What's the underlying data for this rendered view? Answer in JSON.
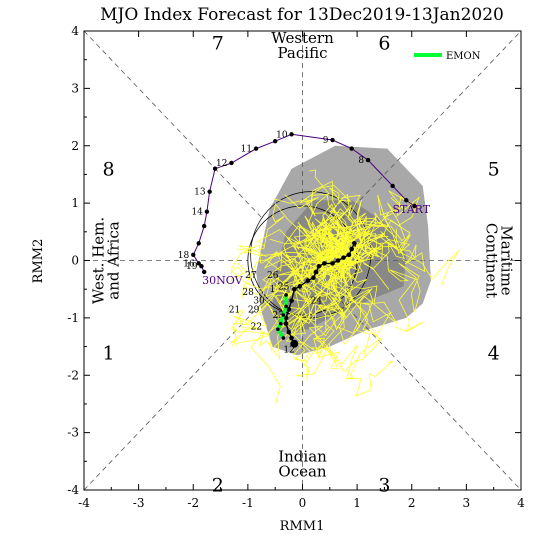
{
  "chart_data": {
    "type": "scatter",
    "title": "MJO Index Forecast for 13Dec2019-13Jan2020",
    "xlabel": "RMM1",
    "ylabel": "RMM2",
    "xlim": [
      -4,
      4
    ],
    "ylim": [
      -4,
      4
    ],
    "xticks": [
      "-4",
      "-3",
      "-2",
      "-1",
      "0",
      "1",
      "2",
      "3",
      "4"
    ],
    "yticks": [
      "-4",
      "-3",
      "-2",
      "-1",
      "0",
      "1",
      "2",
      "3",
      "4"
    ],
    "phases": [
      {
        "label": "1",
        "x": -3.55,
        "y": -1.6
      },
      {
        "label": "2",
        "x": -1.55,
        "y": -3.9
      },
      {
        "label": "3",
        "x": 1.5,
        "y": -3.9
      },
      {
        "label": "4",
        "x": 3.5,
        "y": -1.6
      },
      {
        "label": "5",
        "x": 3.5,
        "y": 1.6
      },
      {
        "label": "6",
        "x": 1.5,
        "y": 3.8
      },
      {
        "label": "7",
        "x": -1.55,
        "y": 3.8
      },
      {
        "label": "8",
        "x": -3.55,
        "y": 1.6
      }
    ],
    "regions": [
      {
        "lines": [
          "Western",
          "Pacific"
        ],
        "x": 0,
        "y": 3.75,
        "rotate": 0
      },
      {
        "lines": [
          "Indian",
          "Ocean"
        ],
        "x": 0,
        "y": -3.55,
        "rotate": 0
      },
      {
        "lines": [
          "West. Hem.",
          "and Africa"
        ],
        "x": -3.6,
        "y": 0,
        "rotate": -90
      },
      {
        "lines": [
          "Maritime",
          "Continent"
        ],
        "x": 3.6,
        "y": 0,
        "rotate": 90
      }
    ],
    "legend": {
      "label": "EMON",
      "color": "#00ff33",
      "position": "top-right"
    },
    "observed": {
      "color": "#4b0082",
      "start_label": "START",
      "end_label": "30NOV",
      "points": [
        [
          2.05,
          0.95
        ],
        [
          1.9,
          1.05
        ],
        [
          1.65,
          1.3
        ],
        [
          1.2,
          1.75
        ],
        [
          0.9,
          1.95
        ],
        [
          0.55,
          2.1
        ],
        [
          -0.2,
          2.2
        ],
        [
          -0.5,
          2.08
        ],
        [
          -0.85,
          1.95
        ],
        [
          -1.3,
          1.7
        ],
        [
          -1.6,
          1.6
        ],
        [
          -1.7,
          1.2
        ],
        [
          -1.75,
          0.85
        ],
        [
          -1.8,
          0.6
        ],
        [
          -1.9,
          0.3
        ],
        [
          -2.0,
          0.1
        ],
        [
          -1.9,
          -0.05
        ],
        [
          -1.85,
          -0.1
        ],
        [
          -1.8,
          -0.2
        ]
      ],
      "labels": [
        {
          "text": "8",
          "i": 3
        },
        {
          "text": "9",
          "i": 5
        },
        {
          "text": "10",
          "i": 6
        },
        {
          "text": "11",
          "i": 8
        },
        {
          "text": "12",
          "i": 9
        },
        {
          "text": "13",
          "i": 11
        },
        {
          "text": "14",
          "i": 12
        },
        {
          "text": "18",
          "i": 15
        },
        {
          "text": "16",
          "i": 16
        },
        {
          "text": "19",
          "i": 17
        }
      ]
    },
    "forecast_mean": {
      "color": "#000000",
      "points": [
        [
          0.95,
          0.3
        ],
        [
          0.9,
          0.2
        ],
        [
          0.85,
          0.1
        ],
        [
          0.75,
          0.05
        ],
        [
          0.65,
          0.0
        ],
        [
          0.55,
          -0.05
        ],
        [
          0.4,
          -0.05
        ],
        [
          0.3,
          -0.1
        ],
        [
          0.25,
          -0.2
        ],
        [
          0.2,
          -0.3
        ],
        [
          0.1,
          -0.35
        ],
        [
          -0.05,
          -0.45
        ],
        [
          -0.15,
          -0.5
        ],
        [
          -0.2,
          -0.7
        ],
        [
          -0.25,
          -0.85
        ],
        [
          -0.3,
          -1.0
        ],
        [
          -0.3,
          -1.1
        ],
        [
          -0.25,
          -1.25
        ],
        [
          -0.2,
          -1.35
        ],
        [
          -0.15,
          -1.45
        ]
      ],
      "labels": [
        {
          "text": "25",
          "x": -0.45,
          "y": -0.45
        },
        {
          "text": "24",
          "x": 0.15,
          "y": -0.7
        },
        {
          "text": "23",
          "x": -0.55,
          "y": -0.95
        },
        {
          "text": "12",
          "x": -0.35,
          "y": -1.55
        }
      ]
    },
    "forecast_labels": [
      {
        "text": "27",
        "x": -1.05,
        "y": -0.25
      },
      {
        "text": "26",
        "x": -0.65,
        "y": -0.25
      },
      {
        "text": "28",
        "x": -1.1,
        "y": -0.55
      },
      {
        "text": "30",
        "x": -0.9,
        "y": -0.7
      },
      {
        "text": "29",
        "x": -1.0,
        "y": -0.85
      },
      {
        "text": "21",
        "x": -1.35,
        "y": -0.85
      },
      {
        "text": "22",
        "x": -0.95,
        "y": -1.15
      },
      {
        "text": "1",
        "x": -0.6,
        "y": -0.5
      }
    ],
    "emon_track": [
      [
        -0.3,
        -0.6
      ],
      [
        -0.3,
        -0.8
      ],
      [
        -0.35,
        -0.95
      ],
      [
        -0.4,
        -1.1
      ],
      [
        -0.45,
        -1.2
      ],
      [
        -0.35,
        -1.35
      ]
    ],
    "spread_outer_color": "#a8a8a8",
    "spread_inner_color": "#888888",
    "ensemble_color": "#ffff33"
  }
}
